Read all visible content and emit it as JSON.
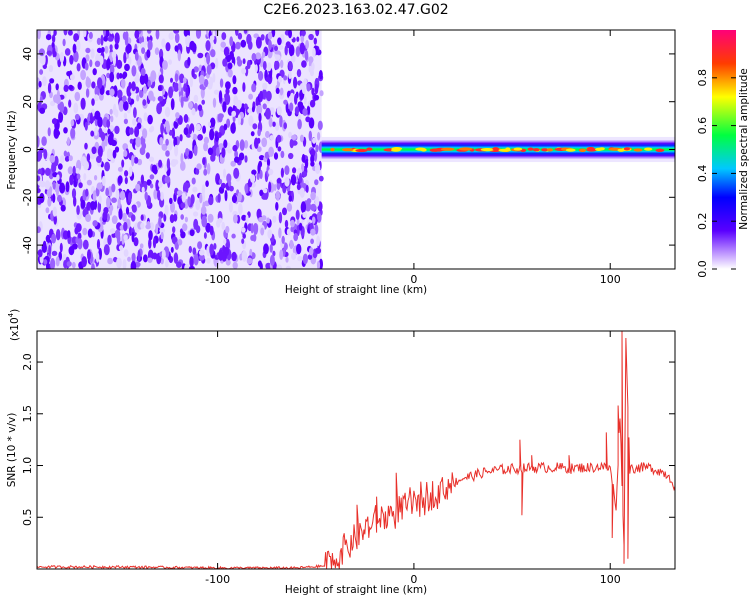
{
  "title": "C2E6.2023.163.02.47.G02",
  "chart_data": [
    {
      "type": "heatmap",
      "xlabel": "Height of straight line (km)",
      "ylabel": "Frequency (Hz)",
      "xlim": [
        -192,
        133
      ],
      "ylim": [
        -50,
        50
      ],
      "xticks": [
        -100,
        0,
        100
      ],
      "xtick_labels": [
        "-100",
        "0",
        "100"
      ],
      "yticks": [
        -40,
        -20,
        0,
        20,
        40
      ],
      "ytick_labels": [
        "-40",
        "-20",
        "0",
        "20",
        "40"
      ],
      "colorbar": {
        "label": "Normalized spectral amplitude",
        "range": [
          0,
          1
        ],
        "ticks": [
          0.0,
          0.2,
          0.4,
          0.6,
          0.8
        ],
        "tick_labels": [
          "0.0",
          "0.2",
          "0.4",
          "0.6",
          "0.8"
        ],
        "colormap": [
          "#ffffff",
          "#5a00ff",
          "#0000ff",
          "#00c8ff",
          "#00ff40",
          "#ffff00",
          "#ff3c00",
          "#ff0078"
        ]
      },
      "noise_region": {
        "x": [
          -192,
          -47
        ],
        "f": [
          -50,
          50
        ],
        "amplitude_range": [
          0.05,
          0.15
        ]
      },
      "signal_band": {
        "x": [
          -47,
          133
        ],
        "center_hz": 0,
        "half_width_hz": 4,
        "peak_amplitude": 0.85
      }
    },
    {
      "type": "line",
      "xlabel": "Height of straight line (km)",
      "ylabel": "SNR (10 * v/v)",
      "y_multiplier_label": "(x10",
      "y_multiplier_exp": "4",
      "y_multiplier_close": ")",
      "xlim": [
        -192,
        133
      ],
      "ylim": [
        0,
        2.3
      ],
      "xticks": [
        -100,
        0,
        100
      ],
      "xtick_labels": [
        "-100",
        "0",
        "100"
      ],
      "yticks": [
        0.5,
        1.0,
        1.5,
        2.0
      ],
      "ytick_labels": [
        "0.5",
        "1.0",
        "1.5",
        "2.0"
      ],
      "line_color": "#e8302a",
      "series": [
        {
          "x": [
            -192,
            -150,
            -100,
            -60,
            -45,
            -40,
            -35,
            -30,
            -25,
            -20,
            -15,
            -10,
            -5,
            0,
            5,
            10,
            15,
            20,
            25,
            30,
            35,
            40,
            45,
            50,
            55,
            60,
            65,
            70,
            75,
            80,
            85,
            90,
            95,
            100,
            103,
            105,
            107,
            108,
            110,
            115,
            120,
            125,
            130,
            133
          ],
          "y": [
            0.02,
            0.02,
            0.01,
            0.01,
            0.03,
            0.1,
            0.2,
            0.3,
            0.38,
            0.45,
            0.5,
            0.55,
            0.6,
            0.63,
            0.68,
            0.73,
            0.78,
            0.83,
            0.88,
            0.9,
            0.93,
            0.95,
            0.96,
            0.97,
            0.97,
            0.98,
            0.98,
            0.98,
            0.98,
            0.97,
            0.98,
            0.98,
            0.99,
            0.97,
            0.6,
            1.5,
            0.2,
            2.2,
            0.97,
            0.98,
            0.98,
            0.95,
            0.9,
            0.8
          ]
        }
      ],
      "spikes": [
        {
          "x": -29,
          "y": 0.62
        },
        {
          "x": -19,
          "y": 0.7
        },
        {
          "x": -9,
          "y": 0.93
        },
        {
          "x": 54,
          "y": 1.25
        },
        {
          "x": 55,
          "y": 0.52
        },
        {
          "x": 60,
          "y": 1.1
        },
        {
          "x": 79,
          "y": 1.1
        },
        {
          "x": 98,
          "y": 1.32
        },
        {
          "x": 101,
          "y": 0.3
        },
        {
          "x": 104,
          "y": 1.58
        },
        {
          "x": 106,
          "y": 2.3
        },
        {
          "x": 107,
          "y": 0.05
        },
        {
          "x": 108,
          "y": 2.22
        },
        {
          "x": 109,
          "y": 0.1
        }
      ]
    }
  ]
}
